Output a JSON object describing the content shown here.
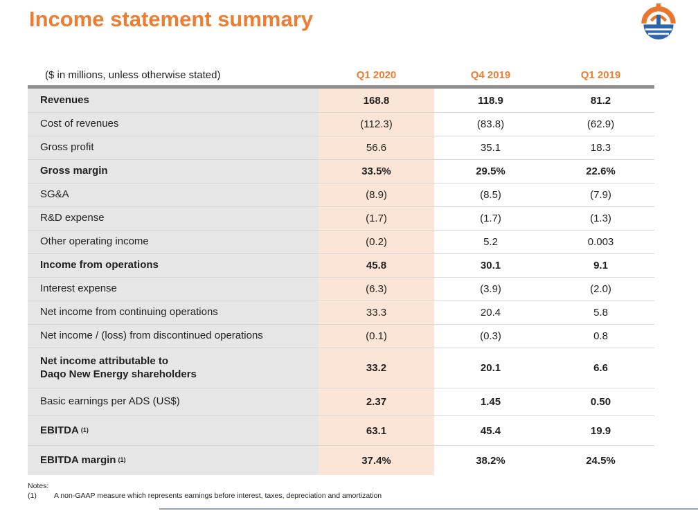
{
  "slide": {
    "title": "Income statement summary"
  },
  "logo": {
    "name": "daqo-new-energy-logo",
    "orange": "#E8762C",
    "blue": "#2B63AD"
  },
  "table": {
    "unit_note": "($ in millions, unless otherwise stated)",
    "columns": [
      "Q1 2020",
      "Q4 2019",
      "Q1 2019"
    ],
    "rows": [
      {
        "label": "Revenues",
        "bold": true,
        "values": [
          "168.8",
          "118.9",
          "81.2"
        ]
      },
      {
        "label": "Cost of revenues",
        "bold": false,
        "values": [
          "(112.3)",
          "(83.8)",
          "(62.9)"
        ]
      },
      {
        "label": "Gross profit",
        "bold": false,
        "values": [
          "56.6",
          "35.1",
          "18.3"
        ]
      },
      {
        "label": "Gross margin",
        "bold": true,
        "values": [
          "33.5%",
          "29.5%",
          "22.6%"
        ]
      },
      {
        "label": "SG&A",
        "bold": false,
        "values": [
          "(8.9)",
          "(8.5)",
          "(7.9)"
        ]
      },
      {
        "label": "R&D expense",
        "bold": false,
        "values": [
          "(1.7)",
          "(1.7)",
          "(1.3)"
        ]
      },
      {
        "label": "Other operating income",
        "bold": false,
        "values": [
          "(0.2)",
          "5.2",
          "0.003"
        ]
      },
      {
        "label": "Income from operations",
        "bold": true,
        "values": [
          "45.8",
          "30.1",
          "9.1"
        ]
      },
      {
        "label": "Interest expense",
        "bold": false,
        "values": [
          "(6.3)",
          "(3.9)",
          "(2.0)"
        ]
      },
      {
        "label": "Net income from continuing operations",
        "bold": false,
        "values": [
          "33.3",
          "20.4",
          "5.8"
        ]
      },
      {
        "label": "Net income / (loss) from discontinued operations",
        "bold": false,
        "values": [
          "(0.1)",
          "(0.3)",
          "0.8"
        ]
      },
      {
        "label": "Net income attributable to\nDaqo New Energy shareholders",
        "bold": true,
        "values": [
          "33.2",
          "20.1",
          "6.6"
        ]
      },
      {
        "label": "Basic earnings per ADS (US$)",
        "bold": false,
        "values_bold": true,
        "values": [
          "2.37",
          "1.45",
          "0.50"
        ]
      },
      {
        "label": "EBITDA",
        "sup": "(1)",
        "bold": true,
        "values": [
          "63.1",
          "45.4",
          "19.9"
        ]
      },
      {
        "label": "EBITDA margin",
        "sup": "(1)",
        "bold": true,
        "values": [
          "37.4%",
          "38.2%",
          "24.5%"
        ]
      }
    ]
  },
  "notes": {
    "heading": "Notes:",
    "items": [
      {
        "marker": "(1)",
        "text": "A non-GAAP measure which represents earnings before interest, taxes, depreciation and amortization"
      }
    ]
  },
  "colors": {
    "accent_orange": "#ED7D31",
    "highlight_column": "#FBE5D6",
    "label_column_bg": "#E7E6E6",
    "header_bar_gray": "#909090",
    "row_divider": "#D8D8D8",
    "logo_blue": "#2B63AD",
    "footer_rule": "#9AA2B6",
    "text": "#1F1F1F"
  }
}
